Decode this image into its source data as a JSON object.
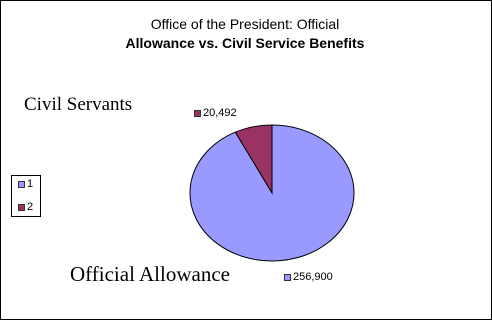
{
  "chart_data": {
    "type": "pie",
    "title": "Office of the President: Official",
    "subtitle": "Allowance vs. Civil Service Benefits",
    "categories": [
      "Official Allowance",
      "Civil Servants"
    ],
    "values": [
      256900,
      20492
    ],
    "value_labels": [
      "256,900",
      "20,492"
    ],
    "colors": [
      "#9999ff",
      "#993366"
    ],
    "legend": {
      "placement": "left",
      "entries": [
        "1",
        "2"
      ]
    }
  }
}
